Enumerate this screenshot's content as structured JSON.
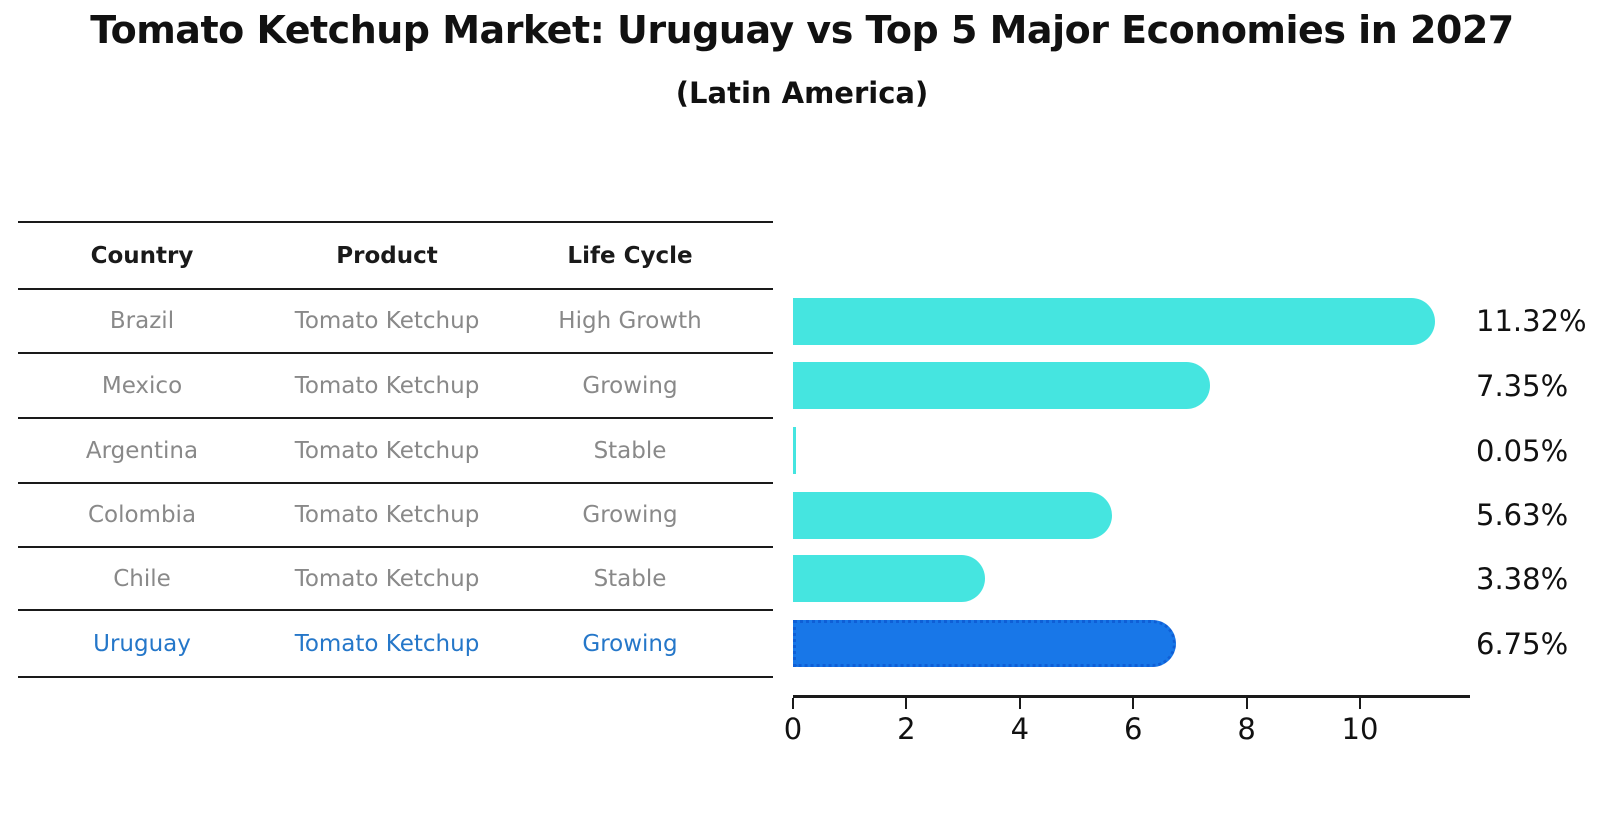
{
  "chart_data": {
    "type": "bar",
    "orientation": "horizontal",
    "title": "Tomato Ketchup Market: Uruguay vs Top 5 Major Economies in 2027",
    "subtitle": "(Latin America)",
    "categories": [
      "Brazil",
      "Mexico",
      "Argentina",
      "Colombia",
      "Chile",
      "Uruguay"
    ],
    "values": [
      11.32,
      7.35,
      0.05,
      5.63,
      3.38,
      6.75
    ],
    "labels": [
      "11.32%",
      "7.35%",
      "0.05%",
      "5.63%",
      "3.38%",
      "6.75%"
    ],
    "value_suffix": "%",
    "xticks": [
      "0",
      "2",
      "4",
      "6",
      "8",
      "10"
    ],
    "xtick_values": [
      0,
      2,
      4,
      6,
      8,
      10
    ],
    "xlim": [
      0,
      11.9
    ],
    "grid": false,
    "legend": false,
    "highlight_index": 5,
    "colors": {
      "bar_default": "#45e5e0",
      "bar_highlight": "#1877e8",
      "bar_highlight_border": "#0f5fd6",
      "text": "#111111",
      "table_text": "#898989",
      "highlight_text": "#2577c9"
    }
  },
  "table": {
    "headers": [
      "Country",
      "Product",
      "Life Cycle"
    ],
    "rows": [
      {
        "country": "Brazil",
        "product": "Tomato Ketchup",
        "life_cycle": "High Growth",
        "highlight": false
      },
      {
        "country": "Mexico",
        "product": "Tomato Ketchup",
        "life_cycle": "Growing",
        "highlight": false
      },
      {
        "country": "Argentina",
        "product": "Tomato Ketchup",
        "life_cycle": "Stable",
        "highlight": false
      },
      {
        "country": "Colombia",
        "product": "Tomato Ketchup",
        "life_cycle": "Growing",
        "highlight": false
      },
      {
        "country": "Chile",
        "product": "Tomato Ketchup",
        "life_cycle": "Stable",
        "highlight": false
      },
      {
        "country": "Uruguay",
        "product": "Tomato Ketchup",
        "life_cycle": "Growing",
        "highlight": true
      }
    ]
  }
}
